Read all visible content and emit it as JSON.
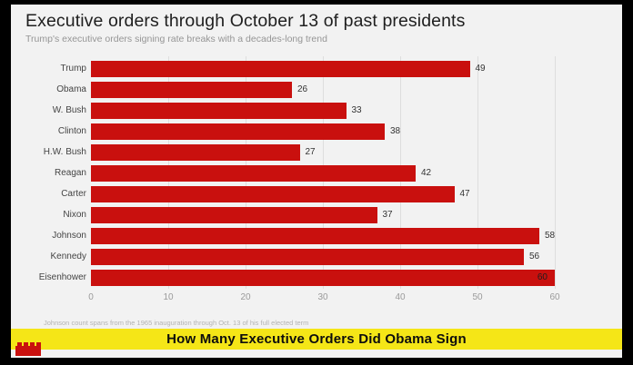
{
  "header": {
    "title": "Executive orders through October 13 of past presidents",
    "subtitle": "Trump's executive orders signing rate breaks with a decades-long trend"
  },
  "chart_data": {
    "type": "bar",
    "orientation": "horizontal",
    "title": "Executive orders through October 13 of past presidents",
    "subtitle": "Trump's executive orders signing rate breaks with a decades-long trend",
    "categories": [
      "Trump",
      "Obama",
      "W. Bush",
      "Clinton",
      "H.W. Bush",
      "Reagan",
      "Carter",
      "Nixon",
      "Johnson",
      "Kennedy",
      "Eisenhower"
    ],
    "values": [
      49,
      26,
      33,
      38,
      27,
      42,
      47,
      37,
      58,
      56,
      60
    ],
    "xlabel": "",
    "ylabel": "",
    "xlim": [
      0,
      60
    ],
    "x_ticks": [
      0,
      10,
      20,
      30,
      40,
      50,
      60
    ],
    "grid": true,
    "legend": false,
    "bar_color": "#c9100e",
    "plot_bg": "#f2f2f2",
    "value_labels": "outside, except max value (60) placed inside bar end"
  },
  "footnote": "Johnson count spans from the 1965 inauguration through Oct. 13 of his full elected term",
  "banner": {
    "text": "How Many Executive Orders Did Obama Sign",
    "bg_color": "#f5e617",
    "text_color": "#0d0d0d"
  },
  "logo": {
    "name": "cnn-logo",
    "color": "#c9100e"
  },
  "frame": {
    "border_color": "#000000",
    "content_bg": "#f2f2f2"
  }
}
